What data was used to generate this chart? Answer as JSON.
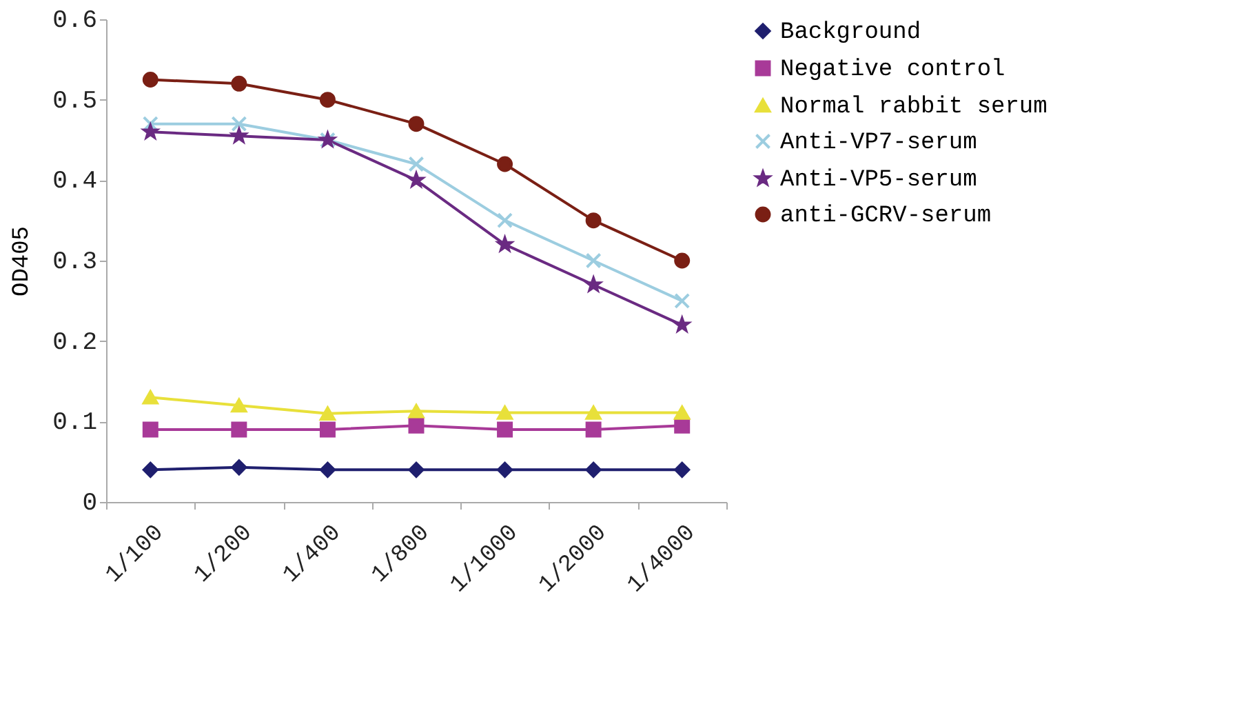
{
  "chart_data": {
    "type": "line",
    "ylabel": "OD405",
    "categories": [
      "1/100",
      "1/200",
      "1/400",
      "1/800",
      "1/1000",
      "1/2000",
      "1/4000"
    ],
    "ylim": [
      0,
      0.6
    ],
    "yticks": [
      0,
      0.1,
      0.2,
      0.3,
      0.4,
      0.5,
      0.6
    ],
    "grid": false,
    "legend": "right",
    "line_style": "solid",
    "series": [
      {
        "name": "Background",
        "color": "#1f1f6e",
        "marker": "diamond",
        "values": [
          0.04,
          0.043,
          0.04,
          0.04,
          0.04,
          0.04,
          0.04
        ]
      },
      {
        "name": "Negative control",
        "color": "#a83a98",
        "marker": "square",
        "values": [
          0.09,
          0.09,
          0.09,
          0.095,
          0.09,
          0.09,
          0.095
        ]
      },
      {
        "name": "Normal rabbit serum",
        "color": "#e8e03a",
        "marker": "triangle",
        "values": [
          0.13,
          0.12,
          0.11,
          0.113,
          0.111,
          0.111,
          0.111
        ]
      },
      {
        "name": "Anti-VP7-serum",
        "color": "#9ccde0",
        "marker": "cross",
        "values": [
          0.47,
          0.47,
          0.45,
          0.42,
          0.35,
          0.3,
          0.25
        ]
      },
      {
        "name": "Anti-VP5-serum",
        "color": "#6a2a82",
        "marker": "star",
        "values": [
          0.46,
          0.455,
          0.45,
          0.4,
          0.32,
          0.27,
          0.22
        ]
      },
      {
        "name": "anti-GCRV-serum",
        "color": "#7a1f14",
        "marker": "circle",
        "values": [
          0.525,
          0.52,
          0.5,
          0.47,
          0.42,
          0.35,
          0.3
        ]
      }
    ]
  }
}
